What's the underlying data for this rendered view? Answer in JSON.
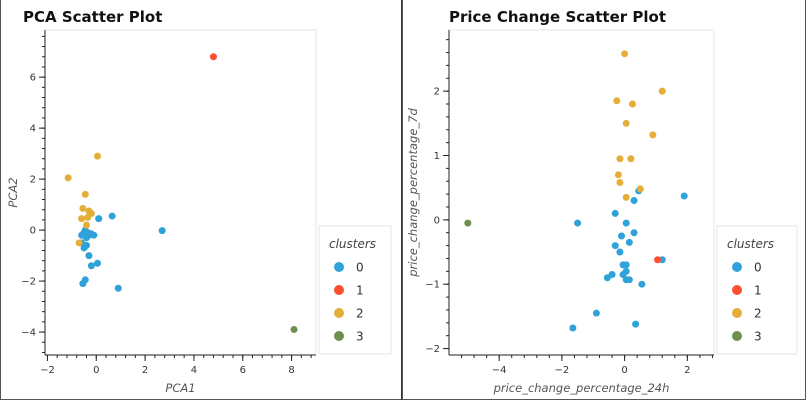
{
  "colors": {
    "0": "#30a2da",
    "1": "#fc4f30",
    "2": "#e5ae38",
    "3": "#6d904f"
  },
  "legend": {
    "title": "clusters",
    "entries": [
      "0",
      "1",
      "2",
      "3"
    ]
  },
  "chart_data": [
    {
      "type": "scatter",
      "title": "PCA Scatter Plot",
      "xlabel": "PCA1",
      "ylabel": "PCA2",
      "xlim": [
        -2.1,
        9.0
      ],
      "ylim": [
        -4.9,
        7.85
      ],
      "xticks": [
        -2,
        0,
        2,
        4,
        6,
        8
      ],
      "yticks": [
        -4,
        -2,
        0,
        2,
        4,
        6
      ],
      "legend_position": "bottom-right",
      "series": [
        {
          "name": "0",
          "points": [
            [
              -0.6,
              -0.2
            ],
            [
              -0.5,
              -0.1
            ],
            [
              -0.4,
              -0.3
            ],
            [
              -0.3,
              -0.2
            ],
            [
              -0.2,
              -0.15
            ],
            [
              -0.1,
              -0.2
            ],
            [
              -0.45,
              0.0
            ],
            [
              -0.6,
              -0.5
            ],
            [
              -0.5,
              -0.7
            ],
            [
              -0.4,
              -0.6
            ],
            [
              -0.3,
              -1.0
            ],
            [
              -0.2,
              -1.4
            ],
            [
              0.05,
              -1.3
            ],
            [
              -0.45,
              -1.95
            ],
            [
              -0.55,
              -2.1
            ],
            [
              0.1,
              0.45
            ],
            [
              0.65,
              0.55
            ],
            [
              2.7,
              -0.02
            ],
            [
              0.9,
              -2.28
            ],
            [
              -0.35,
              -0.1
            ]
          ]
        },
        {
          "name": "1",
          "points": [
            [
              4.8,
              6.8
            ]
          ]
        },
        {
          "name": "2",
          "points": [
            [
              -1.15,
              2.05
            ],
            [
              0.05,
              2.9
            ],
            [
              -0.45,
              1.4
            ],
            [
              -0.55,
              0.85
            ],
            [
              -0.3,
              0.75
            ],
            [
              -0.2,
              0.65
            ],
            [
              -0.35,
              0.5
            ],
            [
              -0.6,
              0.45
            ],
            [
              -0.4,
              0.2
            ],
            [
              -0.7,
              -0.5
            ]
          ]
        },
        {
          "name": "3",
          "points": [
            [
              8.1,
              -3.9
            ]
          ]
        }
      ]
    },
    {
      "type": "scatter",
      "title": "Price Change Scatter Plot",
      "xlabel": "price_change_percentage_24h",
      "ylabel": "price_change_percentage_7d",
      "xlim": [
        -5.6,
        2.85
      ],
      "ylim": [
        -2.1,
        2.95
      ],
      "xticks": [
        -4,
        -2,
        0,
        2
      ],
      "yticks": [
        -2,
        -1,
        0,
        1,
        2
      ],
      "legend_position": "bottom-right",
      "series": [
        {
          "name": "0",
          "points": [
            [
              -1.5,
              -0.05
            ],
            [
              -0.3,
              0.1
            ],
            [
              1.9,
              0.37
            ],
            [
              0.05,
              -0.05
            ],
            [
              0.3,
              -0.2
            ],
            [
              0.45,
              0.45
            ],
            [
              0.3,
              0.3
            ],
            [
              -0.1,
              -0.25
            ],
            [
              -0.3,
              -0.4
            ],
            [
              0.15,
              -0.35
            ],
            [
              -0.15,
              -0.5
            ],
            [
              -0.05,
              -0.7
            ],
            [
              0.05,
              -0.7
            ],
            [
              -0.4,
              -0.85
            ],
            [
              -0.55,
              -0.9
            ],
            [
              -0.05,
              -0.85
            ],
            [
              0.05,
              -0.93
            ],
            [
              0.15,
              -0.93
            ],
            [
              0.55,
              -1.0
            ],
            [
              1.2,
              -0.62
            ],
            [
              -0.9,
              -1.45
            ],
            [
              0.35,
              -1.62
            ],
            [
              -1.65,
              -1.68
            ],
            [
              0.05,
              -0.8
            ]
          ]
        },
        {
          "name": "1",
          "points": [
            [
              1.05,
              -0.62
            ]
          ]
        },
        {
          "name": "2",
          "points": [
            [
              0.0,
              2.58
            ],
            [
              1.2,
              2.0
            ],
            [
              -0.25,
              1.85
            ],
            [
              0.25,
              1.8
            ],
            [
              0.05,
              1.5
            ],
            [
              0.9,
              1.32
            ],
            [
              -0.15,
              0.95
            ],
            [
              0.2,
              0.95
            ],
            [
              -0.2,
              0.7
            ],
            [
              -0.15,
              0.58
            ],
            [
              0.5,
              0.48
            ],
            [
              0.05,
              0.35
            ],
            [
              0.5,
              0.48
            ]
          ]
        },
        {
          "name": "3",
          "points": [
            [
              -5.0,
              -0.05
            ]
          ]
        }
      ]
    }
  ]
}
